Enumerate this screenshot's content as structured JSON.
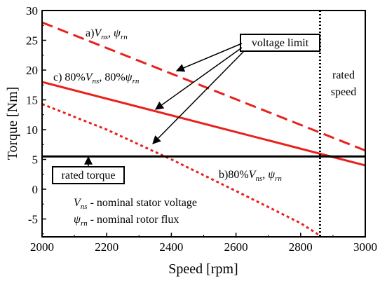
{
  "chart_data": {
    "type": "line",
    "xlabel": "Speed [rpm]",
    "ylabel": "Torque [Nm]",
    "xlim": [
      2000,
      3000
    ],
    "ylim": [
      -8,
      30
    ],
    "x_ticks": [
      2000,
      2200,
      2400,
      2600,
      2800,
      3000
    ],
    "y_ticks": [
      -5,
      0,
      5,
      10,
      15,
      20,
      25,
      30
    ],
    "grid": false,
    "series": [
      {
        "name": "a)Vns, ψrn",
        "color": "#e8211d",
        "dash": "long-dash",
        "points": [
          [
            2000,
            28.0
          ],
          [
            3000,
            6.5
          ]
        ]
      },
      {
        "name": "c) 80%Vns, 80%ψrn",
        "color": "#e8211d",
        "dash": "solid",
        "points": [
          [
            2000,
            18.0
          ],
          [
            3000,
            4.0
          ]
        ]
      },
      {
        "name": "b)80%Vns, ψrn",
        "color": "#e8211d",
        "dash": "short-dash",
        "points": [
          [
            2000,
            14.3
          ],
          [
            2200,
            10.0
          ],
          [
            2400,
            5.0
          ],
          [
            2600,
            -0.3
          ],
          [
            2800,
            -5.7
          ],
          [
            2860,
            -7.8
          ]
        ]
      },
      {
        "name": "rated torque",
        "color": "#000000",
        "dash": "solid",
        "points": [
          [
            2000,
            5.5
          ],
          [
            3000,
            5.5
          ]
        ]
      }
    ],
    "rated_speed": 2860,
    "annotations": {
      "curve_a": {
        "pre": "a)",
        "v": "V",
        "v_sub": "ns",
        "mid": ", ",
        "psi": "ψ",
        "psi_sub": "rn"
      },
      "curve_c": {
        "pre": "c) 80%",
        "v": "V",
        "v_sub": "ns",
        "mid": ", 80%",
        "psi": "ψ",
        "psi_sub": "rn"
      },
      "curve_b": {
        "pre": "b)80%",
        "v": "V",
        "v_sub": "ns",
        "mid": ", ",
        "psi": "ψ",
        "psi_sub": "rn"
      },
      "voltage_limit": "voltage limit",
      "rated_torque": "rated torque",
      "rated_speed_line1": "rated",
      "rated_speed_line2": "speed",
      "legend_v_sym": "V",
      "legend_v_sub": "ns",
      "legend_v_text": " - nominal stator voltage",
      "legend_psi_sym": "ψ",
      "legend_psi_sub": "rn",
      "legend_psi_text": " - nominal rotor flux"
    }
  }
}
